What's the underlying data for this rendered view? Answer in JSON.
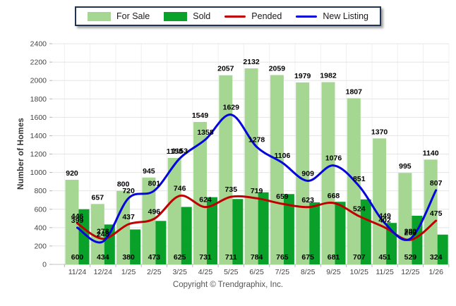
{
  "chart_data": {
    "type": "bar+line",
    "categories": [
      "11/24",
      "12/24",
      "1/25",
      "2/25",
      "3/25",
      "4/25",
      "5/25",
      "6/25",
      "7/25",
      "8/25",
      "9/25",
      "10/25",
      "11/25",
      "12/25",
      "1/26"
    ],
    "series": [
      {
        "name": "For Sale",
        "type": "bar",
        "color": "#a5d793",
        "values": [
          920,
          657,
          800,
          945,
          1158,
          1549,
          2057,
          2132,
          2059,
          1979,
          1982,
          1807,
          1370,
          995,
          1140
        ]
      },
      {
        "name": "Sold",
        "type": "bar",
        "color": "#0aa12b",
        "values": [
          600,
          434,
          380,
          473,
          625,
          731,
          711,
          784,
          765,
          675,
          681,
          707,
          451,
          529,
          324
        ]
      },
      {
        "name": "Pended",
        "type": "line",
        "color": "#c00000",
        "values": [
          446,
          278,
          437,
          496,
          746,
          624,
          735,
          719,
          659,
          623,
          668,
          524,
          402,
          266,
          475
        ]
      },
      {
        "name": "New Listing",
        "type": "line",
        "color": "#0404dd",
        "values": [
          399,
          248,
          720,
          801,
          1153,
          1358,
          1629,
          1278,
          1106,
          909,
          1076,
          851,
          449,
          280,
          807
        ]
      }
    ],
    "title": "",
    "xlabel": "",
    "ylabel": "Number of Homes",
    "ylim": [
      0,
      2400
    ],
    "ytick_step": 200,
    "grid": true,
    "legend_position": "top"
  },
  "footer": {
    "copyright": "Copyright © Trendgraphix, Inc."
  }
}
